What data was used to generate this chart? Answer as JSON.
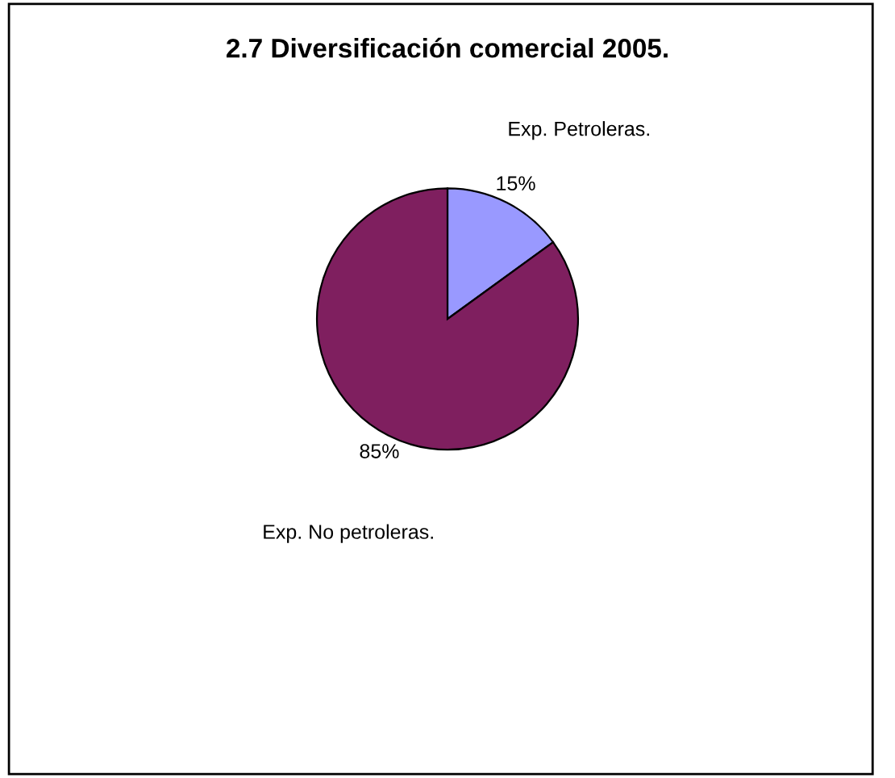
{
  "chart_data": {
    "type": "pie",
    "title": "2.7 Diversificación comercial 2005.",
    "categories": [
      "Exp. Petroleras.",
      "Exp. No petroleras."
    ],
    "values": [
      15,
      85
    ],
    "value_labels": [
      "15%",
      "85%"
    ],
    "colors": [
      "#9999ff",
      "#7f1f5f"
    ],
    "legend": false
  }
}
